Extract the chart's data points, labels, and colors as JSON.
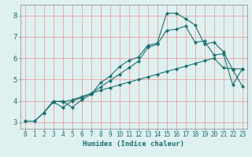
{
  "title": "",
  "xlabel": "Humidex (Indice chaleur)",
  "bg_color": "#dff0f0",
  "grid_color": "#e8a0a0",
  "line_color": "#1a7070",
  "spine_color": "#888888",
  "xlim": [
    -0.5,
    23.5
  ],
  "ylim": [
    2.7,
    8.5
  ],
  "xticks": [
    0,
    1,
    2,
    3,
    4,
    5,
    6,
    7,
    8,
    9,
    10,
    11,
    12,
    13,
    14,
    15,
    16,
    17,
    18,
    19,
    20,
    21,
    22,
    23
  ],
  "yticks": [
    3,
    4,
    5,
    6,
    7,
    8
  ],
  "line1_x": [
    0,
    1,
    2,
    3,
    4,
    5,
    6,
    7,
    8,
    9,
    10,
    11,
    12,
    13,
    14,
    15,
    16,
    17,
    18,
    19,
    20,
    21,
    22,
    23
  ],
  "line1_y": [
    3.05,
    3.05,
    3.45,
    4.0,
    3.95,
    4.05,
    4.2,
    4.35,
    4.5,
    4.62,
    4.75,
    4.88,
    5.0,
    5.12,
    5.25,
    5.38,
    5.5,
    5.62,
    5.75,
    5.88,
    6.0,
    5.55,
    5.5,
    5.5
  ],
  "line2_x": [
    0,
    1,
    2,
    3,
    4,
    5,
    6,
    7,
    8,
    9,
    10,
    11,
    12,
    13,
    14,
    15,
    16,
    17,
    18,
    19,
    20,
    21,
    22,
    23
  ],
  "line2_y": [
    3.05,
    3.05,
    3.45,
    3.95,
    3.7,
    4.0,
    4.15,
    4.35,
    4.65,
    4.95,
    5.25,
    5.55,
    5.85,
    6.5,
    6.65,
    7.3,
    7.35,
    7.5,
    6.75,
    6.8,
    6.15,
    6.2,
    4.75,
    5.5
  ],
  "line3_x": [
    2,
    3,
    4,
    5,
    6,
    7,
    8,
    9,
    10,
    11,
    12,
    13,
    14,
    15,
    16,
    17,
    18,
    19,
    20,
    21,
    22,
    23
  ],
  "line3_y": [
    3.45,
    3.95,
    4.0,
    3.7,
    4.05,
    4.3,
    4.85,
    5.15,
    5.6,
    5.9,
    6.05,
    6.6,
    6.7,
    8.1,
    8.1,
    7.85,
    7.55,
    6.65,
    6.75,
    6.3,
    5.45,
    4.7
  ]
}
